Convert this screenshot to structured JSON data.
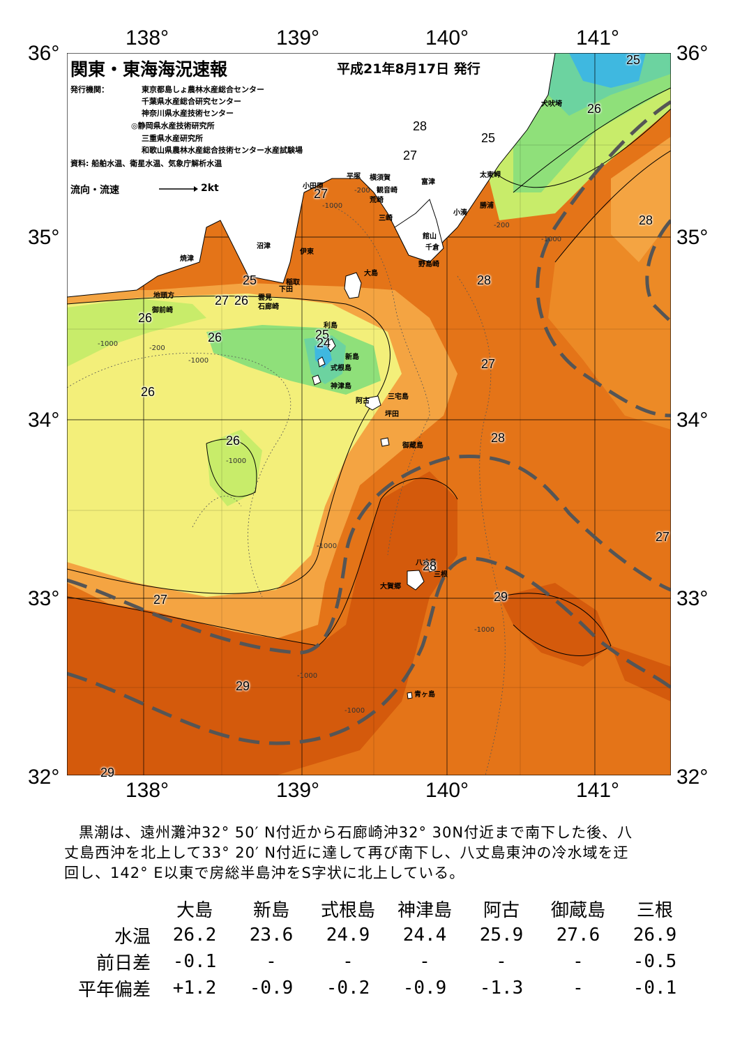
{
  "header": {
    "title": "関東・東海海況速報",
    "date": "平成21年8月17日 発行",
    "publisher_label": "発行機関：",
    "publishers": [
      "東京都島しょ農林水産総合センター",
      "千葉県水産総合研究センター",
      "神奈川県水産技術センター",
      "◎静岡県水産技術研究所",
      "三重県水産研究所",
      "和歌山県農林水産総合技術センター水産試験場"
    ],
    "source": "資料: 船舶水温、衛星水温、気象庁解析水温",
    "legend_label": "流向・流速",
    "legend_scale": "2kt"
  },
  "axes": {
    "lon_labels": [
      "138°",
      "139°",
      "140°",
      "141°"
    ],
    "lat_labels": [
      "36°",
      "35°",
      "34°",
      "33°",
      "32°"
    ]
  },
  "places": {
    "inubo": "犬吠埼",
    "taito": "太東岬",
    "katsuura": "勝浦",
    "kominato": "小湊",
    "futtsu": "富津",
    "kannonzaki": "観音崎",
    "yokosuka": "横須賀",
    "arasaki": "荒崎",
    "misaki": "三崎",
    "hiratsuka": "平塚",
    "odawara": "小田原",
    "tateyama": "館山",
    "chikura": "千倉",
    "nojimazaki": "野島崎",
    "ito": "伊東",
    "numazu": "沼津",
    "yaizu": "焼津",
    "inatori": "稲取",
    "shimoda": "下田",
    "kumomi": "雲見",
    "irozaki": "石廊崎",
    "jitokata": "地頭方",
    "omaezaki": "御前崎",
    "oshima": "大島",
    "toshima": "利島",
    "niijima": "新島",
    "shikinejima": "式根島",
    "kozushima": "神津島",
    "miyakejima": "三宅島",
    "ako": "阿古",
    "tsubota": "坪田",
    "mikurajima": "御蔵島",
    "hachijojima": "八丈島",
    "okago": "大賀郷",
    "mitsune": "三根",
    "aogashima": "青ヶ島"
  },
  "isotherms": {
    "t25": "25",
    "t26": "26",
    "t27": "27",
    "t28": "28",
    "t29": "29",
    "t24": "24"
  },
  "bathymetry": {
    "d200": "-200",
    "d1000": "-1000"
  },
  "comment": "黒潮は、遠州灘沖32° 50′ N付近から石廊崎沖32° 30N付近まで南下した後、八丈島西沖を北上して33° 20′ N付近に達して再び南下し、八丈島東沖の冷水域を迂回し、142° E以東で房総半島沖をS字状に北上している。",
  "stats": {
    "columns": [
      "大島",
      "新島",
      "式根島",
      "神津島",
      "阿古",
      "御蔵島",
      "三根"
    ],
    "rows": [
      {
        "label": "水温",
        "values": [
          "26.2",
          "23.6",
          "24.9",
          "24.4",
          "25.9",
          "27.6",
          "26.9"
        ]
      },
      {
        "label": "前日差",
        "values": [
          "-0.1",
          "-",
          "-",
          "-",
          "-",
          "-",
          "-0.5"
        ]
      },
      {
        "label": "平年偏差",
        "values": [
          "+1.2",
          "-0.9",
          "-0.2",
          "-0.9",
          "-1.3",
          "-",
          "-0.1"
        ]
      }
    ]
  },
  "colors": {
    "t23": "#3fb8e0",
    "t24": "#6cd3a0",
    "t25": "#8fe07a",
    "t26": "#c8ec6a",
    "t26b": "#f3ef7a",
    "t27": "#f7c85c",
    "t27b": "#f4a442",
    "t28": "#ec8a26",
    "t28b": "#e47418",
    "t29": "#d45a0c",
    "kuroshio": "#555555",
    "land": "#ffffff"
  }
}
